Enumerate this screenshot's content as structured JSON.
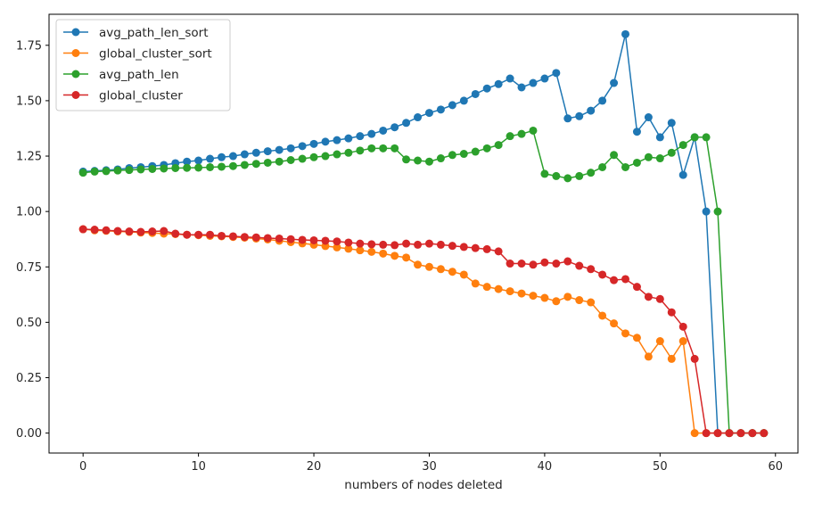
{
  "chart_data": {
    "type": "line",
    "title": "",
    "xlabel": "numbers of nodes deleted",
    "ylabel": "",
    "xlim": [
      -2.95,
      61.95
    ],
    "ylim": [
      -0.09,
      1.89
    ],
    "xticks": [
      0,
      10,
      20,
      30,
      40,
      50,
      60
    ],
    "yticks": [
      0.0,
      0.25,
      0.5,
      0.75,
      1.0,
      1.25,
      1.5,
      1.75
    ],
    "xtick_labels": [
      "0",
      "10",
      "20",
      "30",
      "40",
      "50",
      "60"
    ],
    "ytick_labels": [
      "0.00",
      "0.25",
      "0.50",
      "0.75",
      "1.00",
      "1.25",
      "1.50",
      "1.75"
    ],
    "grid": false,
    "legend_position": "upper-left",
    "x": [
      0,
      1,
      2,
      3,
      4,
      5,
      6,
      7,
      8,
      9,
      10,
      11,
      12,
      13,
      14,
      15,
      16,
      17,
      18,
      19,
      20,
      21,
      22,
      23,
      24,
      25,
      26,
      27,
      28,
      29,
      30,
      31,
      32,
      33,
      34,
      35,
      36,
      37,
      38,
      39,
      40,
      41,
      42,
      43,
      44,
      45,
      46,
      47,
      48,
      49,
      50,
      51,
      52,
      53,
      54,
      55,
      56,
      57,
      58,
      59
    ],
    "series": [
      {
        "name": "avg_path_len_sort",
        "color": "#1f77b4",
        "values": [
          1.18,
          1.183,
          1.186,
          1.19,
          1.196,
          1.2,
          1.205,
          1.21,
          1.218,
          1.225,
          1.23,
          1.238,
          1.245,
          1.25,
          1.258,
          1.265,
          1.272,
          1.278,
          1.285,
          1.295,
          1.305,
          1.315,
          1.322,
          1.33,
          1.34,
          1.35,
          1.365,
          1.38,
          1.4,
          1.425,
          1.445,
          1.46,
          1.48,
          1.5,
          1.53,
          1.555,
          1.575,
          1.6,
          1.56,
          1.58,
          1.6,
          1.625,
          1.42,
          1.43,
          1.455,
          1.5,
          1.58,
          1.8,
          1.36,
          1.425,
          1.335,
          1.4,
          1.165,
          1.335,
          1.0,
          0,
          0,
          0,
          0,
          0
        ]
      },
      {
        "name": "global_cluster_sort",
        "color": "#ff7f0e",
        "values": [
          0.92,
          0.915,
          0.913,
          0.91,
          0.908,
          0.905,
          0.903,
          0.9,
          0.898,
          0.895,
          0.893,
          0.89,
          0.888,
          0.885,
          0.882,
          0.878,
          0.874,
          0.868,
          0.862,
          0.856,
          0.85,
          0.844,
          0.838,
          0.832,
          0.825,
          0.818,
          0.81,
          0.8,
          0.792,
          0.76,
          0.75,
          0.74,
          0.728,
          0.715,
          0.675,
          0.66,
          0.65,
          0.64,
          0.63,
          0.62,
          0.61,
          0.595,
          0.615,
          0.6,
          0.59,
          0.53,
          0.495,
          0.45,
          0.43,
          0.345,
          0.415,
          0.335,
          0.415,
          0.0,
          0,
          0,
          0,
          0,
          0,
          0
        ]
      },
      {
        "name": "avg_path_len",
        "color": "#2ca02c",
        "values": [
          1.175,
          1.18,
          1.182,
          1.185,
          1.187,
          1.19,
          1.192,
          1.194,
          1.196,
          1.197,
          1.198,
          1.2,
          1.202,
          1.205,
          1.21,
          1.215,
          1.22,
          1.225,
          1.232,
          1.238,
          1.245,
          1.25,
          1.258,
          1.265,
          1.275,
          1.285,
          1.285,
          1.285,
          1.235,
          1.23,
          1.225,
          1.24,
          1.255,
          1.26,
          1.27,
          1.285,
          1.3,
          1.34,
          1.35,
          1.365,
          1.17,
          1.16,
          1.15,
          1.16,
          1.175,
          1.2,
          1.255,
          1.2,
          1.22,
          1.245,
          1.24,
          1.265,
          1.3,
          1.335,
          1.335,
          1.0,
          0,
          0,
          0,
          0
        ]
      },
      {
        "name": "global_cluster",
        "color": "#d62728",
        "values": [
          0.92,
          0.918,
          0.915,
          0.912,
          0.91,
          0.908,
          0.91,
          0.912,
          0.9,
          0.895,
          0.895,
          0.895,
          0.89,
          0.888,
          0.885,
          0.883,
          0.88,
          0.878,
          0.875,
          0.872,
          0.87,
          0.868,
          0.865,
          0.86,
          0.855,
          0.852,
          0.85,
          0.848,
          0.855,
          0.85,
          0.855,
          0.85,
          0.845,
          0.84,
          0.835,
          0.83,
          0.82,
          0.765,
          0.765,
          0.76,
          0.77,
          0.765,
          0.775,
          0.755,
          0.74,
          0.715,
          0.69,
          0.695,
          0.66,
          0.615,
          0.605,
          0.545,
          0.48,
          0.335,
          0,
          0,
          0,
          0,
          0,
          0
        ]
      }
    ]
  }
}
